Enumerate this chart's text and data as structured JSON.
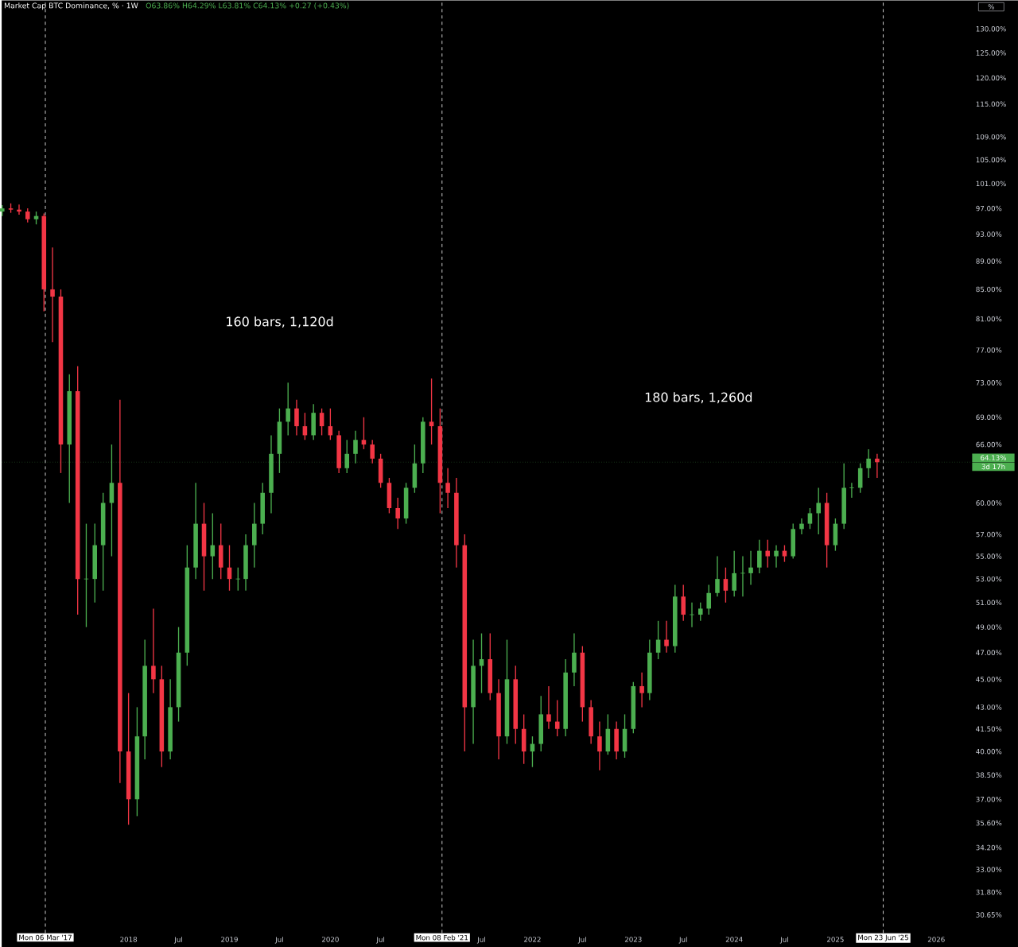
{
  "chart_data": {
    "type": "candlestick",
    "title": "Market Cap BTC Dominance, % · 1W",
    "subtitle": "O63.86% H64.29% L63.81% C64.13% +0.27 (+0.43%)",
    "ylabel": "%",
    "log": true,
    "xlim": [
      "2016-09-29",
      "2026-05-10"
    ],
    "ylim": [
      29.75,
      136.2
    ],
    "xticks": [
      {
        "value": "2018-01-01",
        "label": "2018"
      },
      {
        "value": "2018-07-01",
        "label": "Jul"
      },
      {
        "value": "2019-01-01",
        "label": "2019"
      },
      {
        "value": "2019-07-01",
        "label": "Jul"
      },
      {
        "value": "2020-01-01",
        "label": "2020"
      },
      {
        "value": "2020-07-01",
        "label": "Jul"
      },
      {
        "value": "2021-07-01",
        "label": "Jul"
      },
      {
        "value": "2022-01-01",
        "label": "2022"
      },
      {
        "value": "2022-07-01",
        "label": "Jul"
      },
      {
        "value": "2023-01-01",
        "label": "2023"
      },
      {
        "value": "2023-07-01",
        "label": "Jul"
      },
      {
        "value": "2024-01-01",
        "label": "2024"
      },
      {
        "value": "2024-07-01",
        "label": "Jul"
      },
      {
        "value": "2025-01-01",
        "label": "2025"
      },
      {
        "value": "2026-01-01",
        "label": "2026"
      }
    ],
    "yticks": [
      {
        "value": 130,
        "label": "130.00%"
      },
      {
        "value": 125,
        "label": "125.00%"
      },
      {
        "value": 120,
        "label": "120.00%"
      },
      {
        "value": 115,
        "label": "115.00%"
      },
      {
        "value": 109,
        "label": "109.00%"
      },
      {
        "value": 105,
        "label": "105.00%"
      },
      {
        "value": 101,
        "label": "101.00%"
      },
      {
        "value": 97,
        "label": "97.00%"
      },
      {
        "value": 93,
        "label": "93.00%"
      },
      {
        "value": 89,
        "label": "89.00%"
      },
      {
        "value": 85,
        "label": "85.00%"
      },
      {
        "value": 81,
        "label": "81.00%"
      },
      {
        "value": 77,
        "label": "77.00%"
      },
      {
        "value": 73,
        "label": "73.00%"
      },
      {
        "value": 69,
        "label": "69.00%"
      },
      {
        "value": 66,
        "label": "66.00%"
      },
      {
        "value": 60,
        "label": "60.00%"
      },
      {
        "value": 57,
        "label": "57.00%"
      },
      {
        "value": 55,
        "label": "55.00%"
      },
      {
        "value": 53,
        "label": "53.00%"
      },
      {
        "value": 51,
        "label": "51.00%"
      },
      {
        "value": 49,
        "label": "49.00%"
      },
      {
        "value": 47,
        "label": "47.00%"
      },
      {
        "value": 45,
        "label": "45.00%"
      },
      {
        "value": 43,
        "label": "43.00%"
      },
      {
        "value": 41.5,
        "label": "41.50%"
      },
      {
        "value": 40,
        "label": "40.00%"
      },
      {
        "value": 38.5,
        "label": "38.50%"
      },
      {
        "value": 37,
        "label": "37.00%"
      },
      {
        "value": 35.6,
        "label": "35.60%"
      },
      {
        "value": 34.2,
        "label": "34.20%"
      },
      {
        "value": 33,
        "label": "33.00%"
      },
      {
        "value": 31.8,
        "label": "31.80%"
      },
      {
        "value": 30.65,
        "label": "30.65%"
      }
    ],
    "ref_lines": [
      {
        "axis": "x",
        "value": "2017-03-06",
        "label": "Mon 06 Mar '17",
        "color": "#ffffff",
        "line_style": "dashed"
      },
      {
        "axis": "x",
        "value": "2021-02-08",
        "label": "Mon 08 Feb '21",
        "color": "#ffffff",
        "line_style": "dashed"
      },
      {
        "axis": "x",
        "value": "2025-06-23",
        "label": "Mon 23 Jun '25",
        "color": "#ffffff",
        "line_style": "dashed"
      },
      {
        "axis": "y",
        "value": 64.13,
        "label": "64.13%",
        "color": "#4caf50",
        "line_style": "dotted"
      }
    ],
    "annotations": [
      "160 bars, 1,120d",
      "180 bars, 1,260d",
      "3d 17h"
    ],
    "x": [
      "2016-10",
      "2016-11",
      "2016-12",
      "2017-01",
      "2017-02",
      "2017-03",
      "2017-04",
      "2017-05",
      "2017-06",
      "2017-07",
      "2017-08",
      "2017-09",
      "2017-10",
      "2017-11",
      "2017-12",
      "2018-01",
      "2018-02",
      "2018-03",
      "2018-04",
      "2018-05",
      "2018-06",
      "2018-07",
      "2018-08",
      "2018-09",
      "2018-10",
      "2018-11",
      "2018-12",
      "2019-01",
      "2019-02",
      "2019-03",
      "2019-04",
      "2019-05",
      "2019-06",
      "2019-07",
      "2019-08",
      "2019-09",
      "2019-10",
      "2019-11",
      "2019-12",
      "2020-01",
      "2020-02",
      "2020-03",
      "2020-04",
      "2020-05",
      "2020-06",
      "2020-07",
      "2020-08",
      "2020-09",
      "2020-10",
      "2020-11",
      "2020-12",
      "2021-01",
      "2021-02",
      "2021-03",
      "2021-04",
      "2021-05",
      "2021-06",
      "2021-07",
      "2021-08",
      "2021-09",
      "2021-10",
      "2021-11",
      "2021-12",
      "2022-01",
      "2022-02",
      "2022-03",
      "2022-04",
      "2022-05",
      "2022-06",
      "2022-07",
      "2022-08",
      "2022-09",
      "2022-10",
      "2022-11",
      "2022-12",
      "2023-01",
      "2023-02",
      "2023-03",
      "2023-04",
      "2023-05",
      "2023-06",
      "2023-07",
      "2023-08",
      "2023-09",
      "2023-10",
      "2023-11",
      "2023-12",
      "2024-01",
      "2024-02",
      "2024-03",
      "2024-04",
      "2024-05",
      "2024-06",
      "2024-07",
      "2024-08",
      "2024-09",
      "2024-10",
      "2024-11",
      "2024-12",
      "2025-01",
      "2025-02",
      "2025-03",
      "2025-04",
      "2025-05",
      "2025-06"
    ],
    "ohlc": [
      [
        96.5,
        97.5,
        95.8,
        97
      ],
      [
        97,
        97.8,
        96.3,
        96.8
      ],
      [
        96.8,
        97.6,
        96,
        96.5
      ],
      [
        96.5,
        97,
        94.8,
        95.3
      ],
      [
        95.3,
        96.5,
        94.5,
        95.8
      ],
      [
        95.8,
        96.2,
        82,
        85
      ],
      [
        85,
        91,
        78,
        84
      ],
      [
        84,
        85,
        63,
        66
      ],
      [
        66,
        74,
        60,
        72
      ],
      [
        72,
        75,
        50,
        53
      ],
      [
        53,
        58,
        49,
        53
      ],
      [
        53,
        58,
        51,
        56
      ],
      [
        56,
        61,
        52,
        60
      ],
      [
        60,
        66,
        55,
        62
      ],
      [
        62,
        71,
        38,
        40
      ],
      [
        40,
        44,
        35.5,
        37
      ],
      [
        37,
        43,
        36,
        41
      ],
      [
        41,
        48,
        39.5,
        46
      ],
      [
        46,
        50.5,
        44,
        45
      ],
      [
        45,
        46,
        39,
        40
      ],
      [
        40,
        45,
        39.5,
        43
      ],
      [
        43,
        49,
        42,
        47
      ],
      [
        47,
        56,
        46,
        54
      ],
      [
        54,
        62,
        53,
        58
      ],
      [
        58,
        60,
        52,
        55
      ],
      [
        55,
        59,
        53,
        56
      ],
      [
        56,
        58,
        53,
        54
      ],
      [
        54,
        56,
        52,
        53
      ],
      [
        53,
        54,
        52,
        53
      ],
      [
        53,
        57,
        52,
        56
      ],
      [
        56,
        60,
        54,
        58
      ],
      [
        58,
        62,
        57,
        61
      ],
      [
        61,
        67,
        59,
        65
      ],
      [
        65,
        70,
        63,
        68.5
      ],
      [
        68.5,
        73,
        67,
        70
      ],
      [
        70,
        71,
        67,
        68
      ],
      [
        68,
        69.5,
        66.5,
        67
      ],
      [
        67,
        70.5,
        66.5,
        69.5
      ],
      [
        69.5,
        70,
        67,
        68
      ],
      [
        68,
        70,
        66.5,
        67
      ],
      [
        67,
        67.5,
        63,
        63.5
      ],
      [
        63.5,
        66.5,
        63,
        65
      ],
      [
        65,
        67.5,
        64,
        66.5
      ],
      [
        66.5,
        69,
        65.5,
        66
      ],
      [
        66,
        66.5,
        64,
        64.5
      ],
      [
        64.5,
        65,
        61.5,
        62
      ],
      [
        62,
        62.5,
        59,
        59.5
      ],
      [
        59.5,
        60.5,
        57.5,
        58.5
      ],
      [
        58.5,
        62,
        58,
        61.5
      ],
      [
        61.5,
        66,
        61,
        64
      ],
      [
        64,
        69,
        63,
        68.5
      ],
      [
        68.5,
        73.5,
        66,
        68
      ],
      [
        68,
        70,
        59,
        62
      ],
      [
        62,
        63.5,
        59.5,
        61
      ],
      [
        61,
        62.5,
        54,
        56
      ],
      [
        56,
        57,
        40,
        43
      ],
      [
        43,
        48,
        40.5,
        46
      ],
      [
        46,
        48.5,
        44,
        46.5
      ],
      [
        46.5,
        48.5,
        43.5,
        44
      ],
      [
        44,
        45,
        39.5,
        41
      ],
      [
        41,
        48,
        40.5,
        45
      ],
      [
        45,
        46,
        40.5,
        41.5
      ],
      [
        41.5,
        42.5,
        39.2,
        40
      ],
      [
        40,
        41,
        39,
        40.5
      ],
      [
        40.5,
        43.8,
        40,
        42.5
      ],
      [
        42.5,
        44.5,
        41.5,
        42
      ],
      [
        42,
        43.5,
        41,
        41.5
      ],
      [
        41.5,
        46.5,
        41,
        45.5
      ],
      [
        45.5,
        48.5,
        44.5,
        47
      ],
      [
        47,
        47.5,
        42,
        43
      ],
      [
        43,
        43.5,
        40.5,
        41
      ],
      [
        41,
        42,
        38.8,
        40
      ],
      [
        40,
        42.5,
        39.8,
        41.5
      ],
      [
        41.5,
        42,
        39.5,
        40
      ],
      [
        40,
        42.5,
        39.6,
        41.5
      ],
      [
        41.5,
        44.8,
        41.2,
        44.5
      ],
      [
        44.5,
        45.5,
        43,
        44
      ],
      [
        44,
        48,
        43.5,
        47
      ],
      [
        47,
        49.5,
        46.5,
        48
      ],
      [
        48,
        49.5,
        47,
        47.5
      ],
      [
        47.5,
        52.5,
        47,
        51.5
      ],
      [
        51.5,
        52.5,
        49.5,
        50
      ],
      [
        50,
        51,
        49,
        50
      ],
      [
        50,
        51,
        49.5,
        50.5
      ],
      [
        50.5,
        52.5,
        50,
        51.8
      ],
      [
        51.8,
        55,
        51.5,
        53
      ],
      [
        53,
        54,
        51,
        52
      ],
      [
        52,
        55.5,
        51.5,
        53.5
      ],
      [
        53.5,
        55,
        51.5,
        53.5
      ],
      [
        53.5,
        55.5,
        52.5,
        54
      ],
      [
        54,
        56.5,
        53.5,
        55.5
      ],
      [
        55.5,
        56.5,
        54,
        55
      ],
      [
        55,
        56,
        54,
        55.5
      ],
      [
        55.5,
        56,
        54.5,
        55
      ],
      [
        55,
        58,
        54.8,
        57.5
      ],
      [
        57.5,
        58.5,
        57,
        58
      ],
      [
        58,
        59.5,
        57.5,
        59
      ],
      [
        59,
        61.5,
        57,
        60
      ],
      [
        60,
        61,
        54,
        56
      ],
      [
        56,
        58.5,
        55.5,
        58
      ],
      [
        58,
        64,
        57.5,
        61.5
      ],
      [
        61.5,
        62,
        60.5,
        61.5
      ],
      [
        61.5,
        64,
        61,
        63.5
      ],
      [
        63.5,
        65.5,
        62.5,
        64.5
      ],
      [
        64.5,
        65,
        62.5,
        64.13
      ]
    ]
  }
}
